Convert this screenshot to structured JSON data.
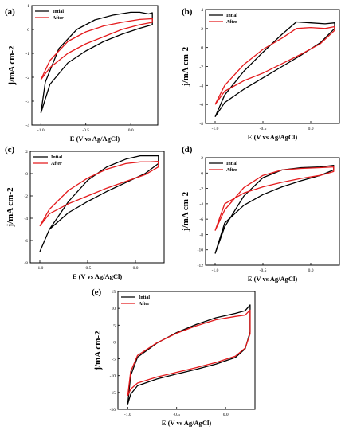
{
  "figure": {
    "legend_labels": [
      "Intial",
      "After"
    ],
    "colors": {
      "initial": "#000000",
      "after": "#e41a1c"
    }
  },
  "chart_data": [
    {
      "type": "line",
      "panel": "(a)",
      "xlabel": "E (V vs Ag/AgCl)",
      "ylabel": "j/mA cm-2",
      "xlim": [
        -1.1,
        0.3
      ],
      "ylim": [
        -4,
        1
      ],
      "xticks": [
        "-1.0",
        "-0.5",
        "0.0"
      ],
      "xtick_values": [
        -1.0,
        -0.5,
        0.0
      ],
      "yticks": [
        "1",
        "0",
        "-1",
        "-2",
        "-3",
        "-4"
      ],
      "ytick_values": [
        1,
        0,
        -1,
        -2,
        -3,
        -4
      ],
      "legend": "top-left",
      "series": [
        {
          "name": "Intial",
          "color": "#000000",
          "x": [
            -1.0,
            -0.95,
            -0.8,
            -0.6,
            -0.4,
            -0.2,
            0.0,
            0.1,
            0.2,
            0.24,
            0.24,
            0.1,
            -0.1,
            -0.3,
            -0.5,
            -0.7,
            -0.9,
            -1.0
          ],
          "y": [
            -3.5,
            -2.2,
            -0.8,
            0.0,
            0.4,
            0.6,
            0.72,
            0.72,
            0.65,
            0.7,
            0.2,
            0.05,
            -0.2,
            -0.5,
            -0.9,
            -1.4,
            -2.3,
            -3.5
          ]
        },
        {
          "name": "After",
          "color": "#e41a1c",
          "x": [
            -1.0,
            -0.9,
            -0.7,
            -0.5,
            -0.3,
            -0.1,
            0.1,
            0.24,
            0.24,
            0.1,
            -0.1,
            -0.3,
            -0.5,
            -0.7,
            -0.9,
            -1.0
          ],
          "y": [
            -2.1,
            -1.3,
            -0.5,
            -0.1,
            0.15,
            0.3,
            0.42,
            0.45,
            0.3,
            0.2,
            0.0,
            -0.3,
            -0.6,
            -1.0,
            -1.6,
            -2.1
          ]
        }
      ]
    },
    {
      "type": "line",
      "panel": "(b)",
      "xlabel": "E (V vs Ag/AgCl)",
      "ylabel": "j/mA cm-2",
      "xlim": [
        -1.1,
        0.3
      ],
      "ylim": [
        -8,
        4
      ],
      "xticks": [
        "-1.0",
        "-0.5",
        "0.0"
      ],
      "xtick_values": [
        -1.0,
        -0.5,
        0.0
      ],
      "yticks": [
        "4",
        "2",
        "0",
        "-2",
        "-4",
        "-6",
        "-8"
      ],
      "ytick_values": [
        4,
        2,
        0,
        -2,
        -4,
        -6,
        -8
      ],
      "legend": "top-left",
      "series": [
        {
          "name": "Intial",
          "color": "#000000",
          "x": [
            -1.0,
            -0.9,
            -0.7,
            -0.5,
            -0.3,
            -0.15,
            0.0,
            0.15,
            0.25,
            0.25,
            0.1,
            -0.1,
            -0.3,
            -0.5,
            -0.7,
            -0.9,
            -1.0
          ],
          "y": [
            -7.3,
            -5.0,
            -2.5,
            -0.5,
            1.4,
            2.7,
            2.6,
            2.5,
            2.6,
            2.0,
            0.5,
            -0.8,
            -2.0,
            -3.2,
            -4.4,
            -5.8,
            -7.3
          ]
        },
        {
          "name": "After",
          "color": "#e41a1c",
          "x": [
            -1.0,
            -0.9,
            -0.7,
            -0.5,
            -0.3,
            -0.15,
            0.0,
            0.15,
            0.25,
            0.25,
            0.1,
            -0.1,
            -0.3,
            -0.5,
            -0.7,
            -0.9,
            -1.0
          ],
          "y": [
            -6.0,
            -4.0,
            -1.8,
            -0.2,
            1.0,
            2.0,
            2.1,
            2.0,
            2.2,
            1.8,
            0.4,
            -0.7,
            -1.7,
            -2.7,
            -3.5,
            -4.6,
            -6.0
          ]
        }
      ]
    },
    {
      "type": "line",
      "panel": "(c)",
      "xlabel": "E (V vs Ag/AgCl)",
      "ylabel": "j/mA cm-2",
      "xlim": [
        -1.1,
        0.3
      ],
      "ylim": [
        -8,
        2
      ],
      "xticks": [
        "-1.0",
        "-0.5",
        "0.0"
      ],
      "xtick_values": [
        -1.0,
        -0.5,
        0.0
      ],
      "yticks": [
        "2",
        "0",
        "-2",
        "-4",
        "-6",
        "-8"
      ],
      "ytick_values": [
        2,
        0,
        -2,
        -4,
        -6,
        -8
      ],
      "legend": "top-left",
      "series": [
        {
          "name": "Intial",
          "color": "#000000",
          "x": [
            -1.0,
            -0.9,
            -0.7,
            -0.5,
            -0.3,
            -0.1,
            0.05,
            0.15,
            0.24,
            0.24,
            0.1,
            -0.1,
            -0.3,
            -0.5,
            -0.7,
            -0.9,
            -1.0
          ],
          "y": [
            -7.0,
            -5.0,
            -2.5,
            -0.6,
            0.6,
            1.3,
            1.6,
            1.6,
            1.6,
            0.9,
            0.0,
            -0.8,
            -1.6,
            -2.5,
            -3.5,
            -5.0,
            -7.0
          ]
        },
        {
          "name": "After",
          "color": "#e41a1c",
          "x": [
            -1.0,
            -0.9,
            -0.7,
            -0.5,
            -0.3,
            -0.1,
            0.05,
            0.15,
            0.24,
            0.24,
            0.1,
            -0.1,
            -0.3,
            -0.5,
            -0.7,
            -0.9,
            -1.0
          ],
          "y": [
            -4.7,
            -3.2,
            -1.5,
            -0.4,
            0.4,
            0.9,
            1.05,
            1.05,
            1.1,
            0.6,
            -0.1,
            -0.7,
            -1.3,
            -2.0,
            -2.7,
            -3.6,
            -4.7
          ]
        }
      ]
    },
    {
      "type": "line",
      "panel": "(d)",
      "xlabel": "E (V vs Ag/AgCl)",
      "ylabel": "j/mA cm-2",
      "xlim": [
        -1.1,
        0.3
      ],
      "ylim": [
        -12,
        2
      ],
      "xticks": [
        "-1.0",
        "-0.5",
        "0.0"
      ],
      "xtick_values": [
        -1.0,
        -0.5,
        0.0
      ],
      "yticks": [
        "2",
        "0",
        "-2",
        "-4",
        "-6",
        "-8",
        "-10",
        "-12"
      ],
      "ytick_values": [
        2,
        0,
        -2,
        -4,
        -6,
        -8,
        -10,
        -12
      ],
      "legend": "top-left",
      "series": [
        {
          "name": "Intial",
          "color": "#000000",
          "x": [
            -1.0,
            -0.9,
            -0.7,
            -0.5,
            -0.3,
            -0.1,
            0.1,
            0.24,
            0.24,
            0.1,
            -0.1,
            -0.3,
            -0.5,
            -0.7,
            -0.9,
            -1.0
          ],
          "y": [
            -10.5,
            -7.0,
            -3.0,
            -0.6,
            0.4,
            0.7,
            0.8,
            1.0,
            0.4,
            -0.3,
            -1.0,
            -1.8,
            -2.8,
            -4.2,
            -6.5,
            -10.5
          ]
        },
        {
          "name": "After",
          "color": "#e41a1c",
          "x": [
            -1.0,
            -0.9,
            -0.7,
            -0.5,
            -0.3,
            -0.1,
            0.1,
            0.24,
            0.24,
            0.1,
            -0.1,
            -0.3,
            -0.5,
            -0.7,
            -0.9,
            -1.0
          ],
          "y": [
            -7.5,
            -4.8,
            -1.9,
            -0.3,
            0.4,
            0.6,
            0.7,
            0.8,
            0.2,
            -0.3,
            -0.7,
            -1.2,
            -1.8,
            -2.6,
            -4.0,
            -7.5
          ]
        }
      ]
    },
    {
      "type": "line",
      "panel": "(e)",
      "xlabel": "E (V vs Ag/AgCl)",
      "ylabel": "j/mA cm-2",
      "xlim": [
        -1.1,
        0.3
      ],
      "ylim": [
        -20,
        15
      ],
      "xticks": [
        "-1.0",
        "-0.5",
        "0.0"
      ],
      "xtick_values": [
        -1.0,
        -0.5,
        0.0
      ],
      "yticks": [
        "15",
        "10",
        "5",
        "0",
        "-5",
        "-10",
        "-15",
        "-20"
      ],
      "ytick_values": [
        15,
        10,
        5,
        0,
        -5,
        -10,
        -15,
        -20
      ],
      "legend": "top-left",
      "series": [
        {
          "name": "Intial",
          "color": "#000000",
          "x": [
            -1.0,
            -0.97,
            -0.9,
            -0.7,
            -0.5,
            -0.3,
            -0.1,
            0.1,
            0.2,
            0.25,
            0.25,
            0.2,
            0.1,
            -0.1,
            -0.3,
            -0.5,
            -0.7,
            -0.9,
            -0.97,
            -1.0
          ],
          "y": [
            -18.5,
            -10.0,
            -4.5,
            -0.3,
            2.8,
            5.2,
            7.2,
            8.5,
            9.3,
            11.0,
            3.0,
            -2.0,
            -4.6,
            -6.6,
            -8.1,
            -9.5,
            -11.0,
            -13.0,
            -15.5,
            -18.5
          ]
        },
        {
          "name": "After",
          "color": "#e41a1c",
          "x": [
            -1.0,
            -0.97,
            -0.9,
            -0.7,
            -0.5,
            -0.3,
            -0.1,
            0.1,
            0.2,
            0.25,
            0.25,
            0.2,
            0.1,
            -0.1,
            -0.3,
            -0.5,
            -0.7,
            -0.9,
            -0.97,
            -1.0
          ],
          "y": [
            -16.0,
            -8.8,
            -4.0,
            -0.2,
            2.6,
            4.8,
            6.6,
            7.6,
            8.0,
            9.5,
            2.4,
            -1.8,
            -4.2,
            -6.1,
            -7.6,
            -9.0,
            -10.4,
            -12.2,
            -14.0,
            -16.0
          ]
        }
      ]
    }
  ]
}
